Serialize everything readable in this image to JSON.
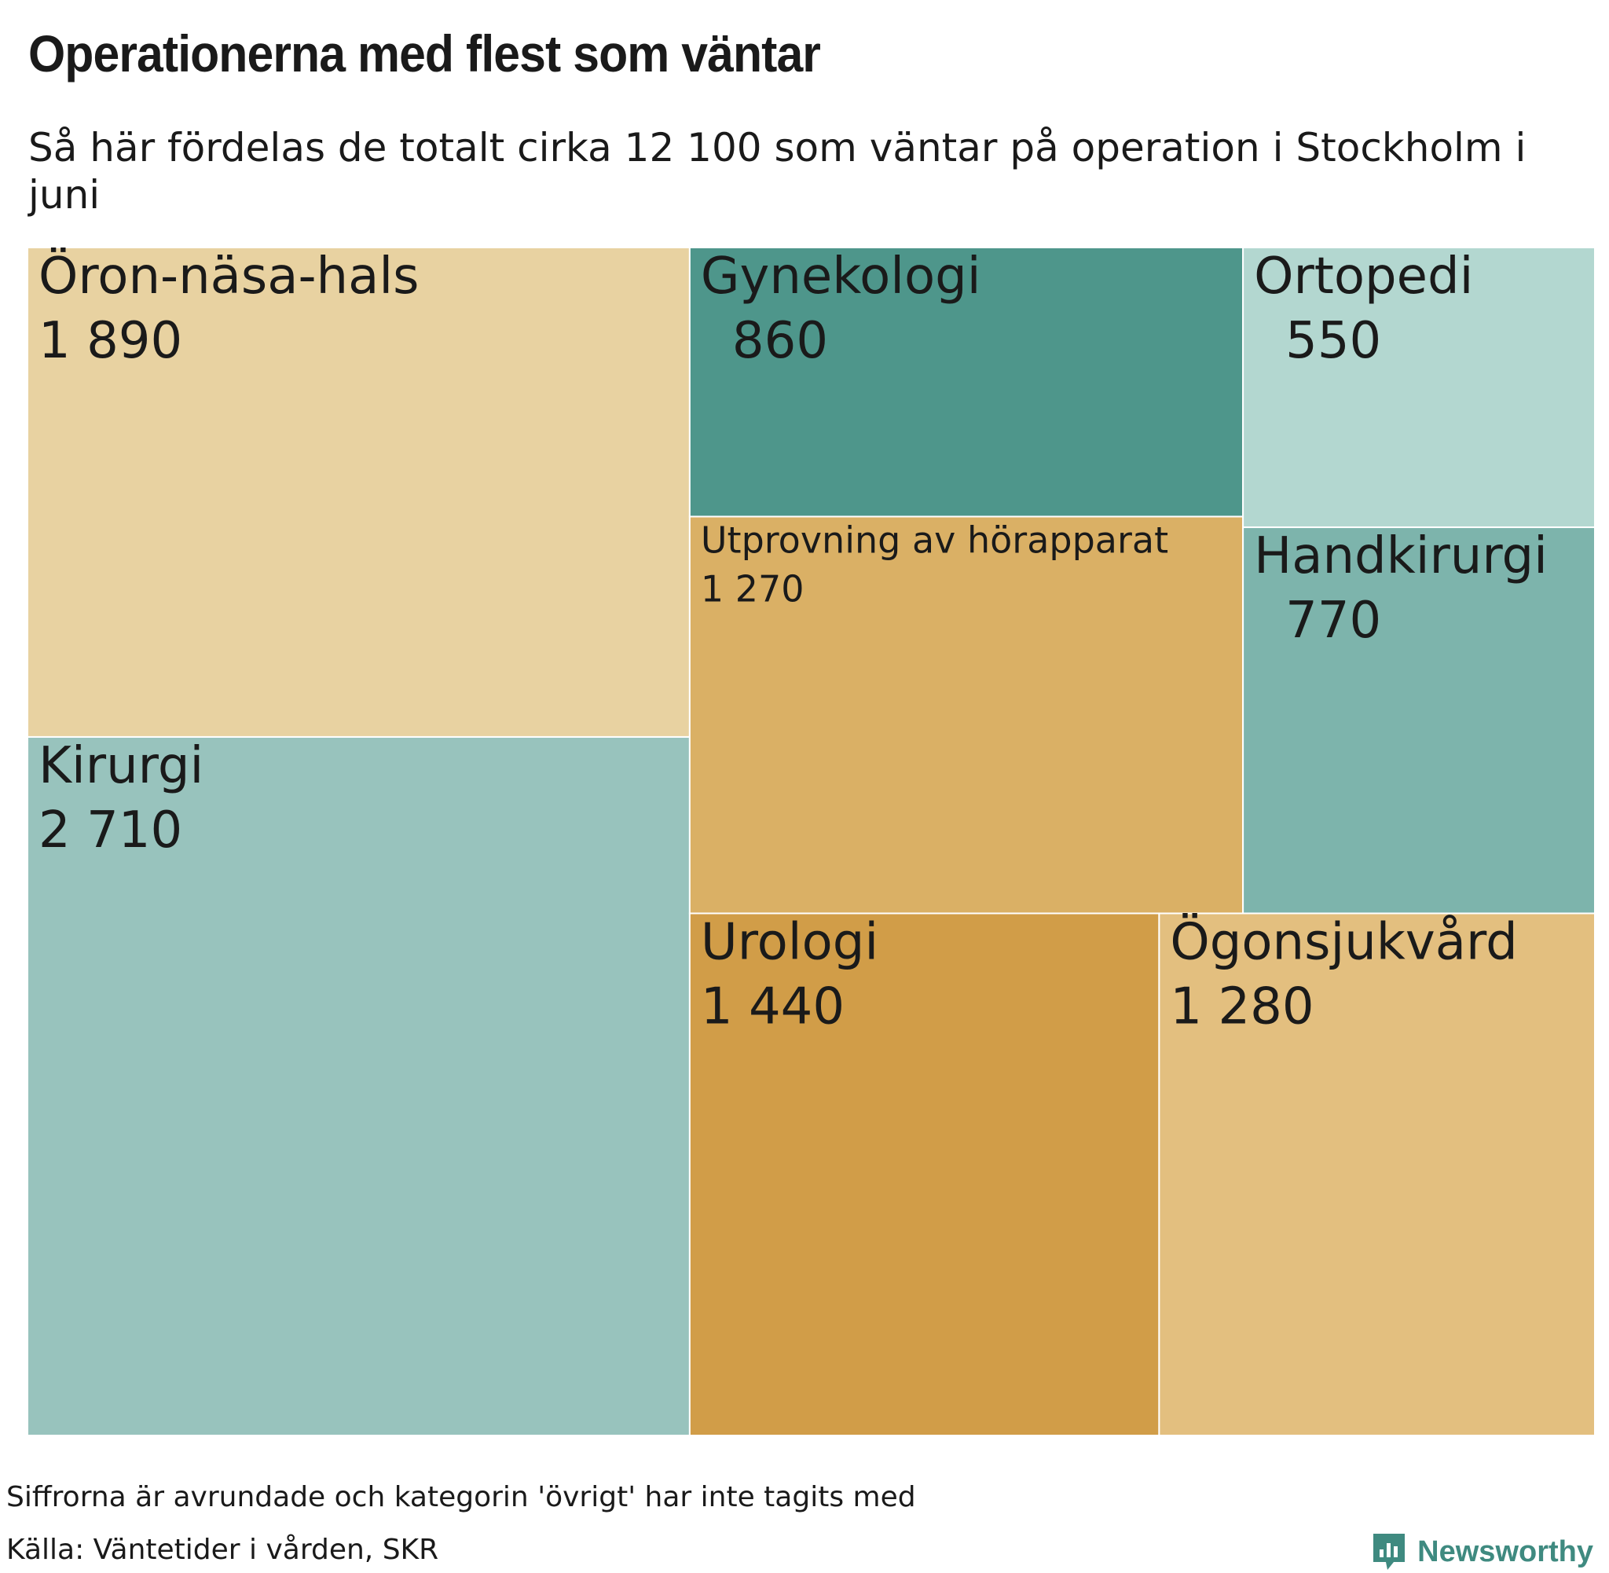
{
  "chart_data": {
    "type": "treemap",
    "title": "Operationerna med flest som väntar",
    "subtitle": "Så här fördelas de totalt cirka 12 100 som väntar på operation i Stockholm i juni",
    "items": [
      {
        "name": "Öron-näsa-hals",
        "label": "1 890",
        "value": 1890,
        "color": "#e8d2a1"
      },
      {
        "name": "Kirurgi",
        "label": "2 710",
        "value": 2710,
        "color": "#98c3bd"
      },
      {
        "name": "Gynekologi",
        "label": "860",
        "value": 860,
        "color": "#4e968b"
      },
      {
        "name": "Utprovning av hörapparat",
        "label": "1 270",
        "value": 1270,
        "color": "#dab065"
      },
      {
        "name": "Urologi",
        "label": "1 440",
        "value": 1440,
        "color": "#d19d48"
      },
      {
        "name": "Ortopedi",
        "label": "550",
        "value": 550,
        "color": "#b3d7d0"
      },
      {
        "name": "Handkirurgi",
        "label": "770",
        "value": 770,
        "color": "#7db4ac"
      },
      {
        "name": "Ögonsjukvård",
        "label": "1 280",
        "value": 1280,
        "color": "#e3bf7f"
      }
    ]
  },
  "footer": {
    "note": "Siffrorna är avrundade och kategorin 'övrigt' har inte tagits med",
    "source": "Källa: Väntetider i vården, SKR",
    "brand": "Newsworthy",
    "brand_icon": "newsworthy-logo-icon",
    "brand_color": "#3f8a80"
  }
}
